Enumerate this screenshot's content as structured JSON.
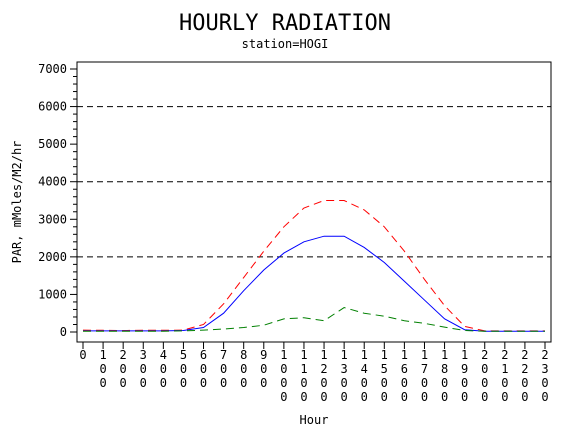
{
  "chart_data": {
    "type": "line",
    "title": "HOURLY RADIATION",
    "subtitle": "station=HOGI",
    "xlabel": "Hour",
    "ylabel": "PAR, mMoles/M2/hr",
    "xlim": [
      0,
      2300
    ],
    "ylim": [
      0,
      7000
    ],
    "x": [
      0,
      100,
      200,
      300,
      400,
      500,
      600,
      700,
      800,
      900,
      1000,
      1100,
      1200,
      1300,
      1400,
      1500,
      1600,
      1700,
      1800,
      1900,
      2000,
      2100,
      2200,
      2300
    ],
    "x_tick_labels": [
      "0",
      "100",
      "200",
      "300",
      "400",
      "500",
      "600",
      "700",
      "800",
      "900",
      "1000",
      "1100",
      "1200",
      "1300",
      "1400",
      "1500",
      "1600",
      "1700",
      "1800",
      "1900",
      "2000",
      "2100",
      "2200",
      "2300"
    ],
    "y_ticks": [
      0,
      1000,
      2000,
      3000,
      4000,
      5000,
      6000,
      7000
    ],
    "y_tick_labels": [
      "0",
      "1000",
      "2000",
      "3000",
      "4000",
      "5000",
      "6000",
      "7000"
    ],
    "reference_lines": [
      2000,
      4000,
      6000
    ],
    "grid": "dashed horizontal reference lines",
    "legend": "none",
    "series": [
      {
        "color": "#ff0000",
        "dash": "dashed",
        "values": [
          50,
          45,
          40,
          45,
          45,
          50,
          200,
          750,
          1450,
          2150,
          2800,
          3300,
          3500,
          3500,
          3250,
          2800,
          2150,
          1400,
          700,
          150,
          30,
          30,
          30,
          30
        ]
      },
      {
        "color": "#0000ff",
        "dash": "solid",
        "values": [
          30,
          30,
          30,
          30,
          30,
          40,
          120,
          500,
          1100,
          1650,
          2100,
          2400,
          2550,
          2550,
          2250,
          1850,
          1350,
          850,
          350,
          60,
          20,
          20,
          20,
          20
        ]
      },
      {
        "color": "#008000",
        "dash": "dashed",
        "values": [
          20,
          20,
          20,
          20,
          20,
          30,
          50,
          80,
          120,
          180,
          350,
          380,
          300,
          650,
          500,
          420,
          300,
          230,
          130,
          40,
          20,
          20,
          20,
          20
        ]
      }
    ]
  },
  "colors": {
    "axis": "#000000",
    "background": "#ffffff",
    "reference_line": "#000000"
  }
}
